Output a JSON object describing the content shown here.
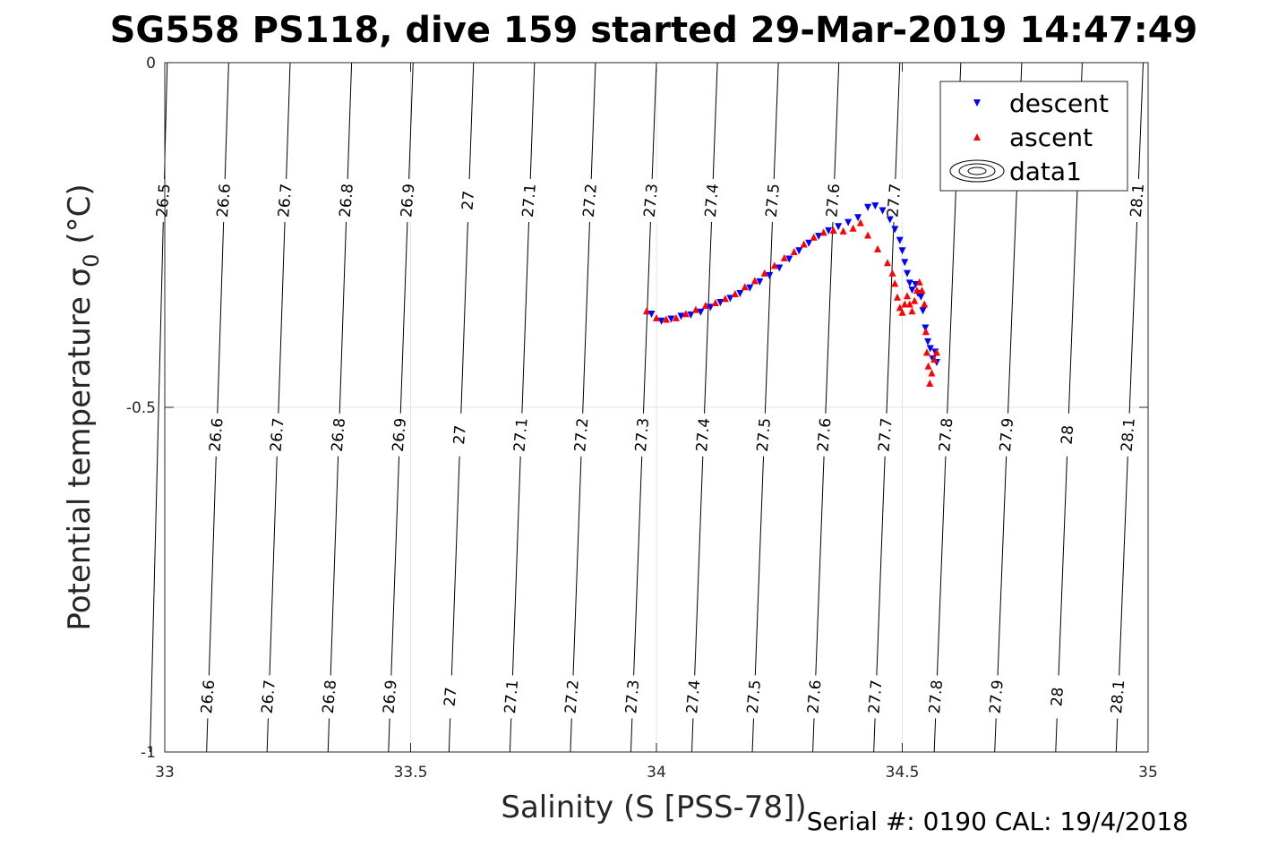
{
  "chart_data": {
    "type": "scatter",
    "title": "SG558 PS118, dive 159 started 29-Mar-2019 14:47:49",
    "xlabel": "Salinity (S [PSS-78])",
    "ylabel": "Potential temperature σ",
    "ylabel_sub": "0",
    "ylabel_unit": " (°C)",
    "xlim": [
      33,
      35
    ],
    "ylim": [
      -1,
      0
    ],
    "xticks": [
      33,
      33.5,
      34,
      34.5,
      35
    ],
    "xtick_labels": [
      "33",
      "33.5",
      "34",
      "34.5",
      "35"
    ],
    "yticks": [
      0,
      -0.5,
      -1
    ],
    "ytick_labels": [
      "0",
      "-0.5",
      "-1"
    ],
    "grid": true,
    "legend_position": "top-right",
    "legend": [
      {
        "label": "descent",
        "marker": "triangle-down",
        "color": "#0000ff"
      },
      {
        "label": "ascent",
        "marker": "triangle-up",
        "color": "#ff0000"
      },
      {
        "label": "data1",
        "marker": "contour",
        "color": "#000000"
      }
    ],
    "contours": [
      {
        "level": "26.5",
        "s_top": 33.005,
        "s_bottom": 32.97
      },
      {
        "level": "26.6",
        "s_top": 33.13,
        "s_bottom": 33.085
      },
      {
        "level": "26.7",
        "s_top": 33.255,
        "s_bottom": 33.208
      },
      {
        "level": "26.8",
        "s_top": 33.38,
        "s_bottom": 33.332
      },
      {
        "level": "26.9",
        "s_top": 33.505,
        "s_bottom": 33.455
      },
      {
        "level": "27",
        "s_top": 33.628,
        "s_bottom": 33.578
      },
      {
        "level": "27.1",
        "s_top": 33.752,
        "s_bottom": 33.702
      },
      {
        "level": "27.2",
        "s_top": 33.876,
        "s_bottom": 33.825
      },
      {
        "level": "27.3",
        "s_top": 34.0,
        "s_bottom": 33.948
      },
      {
        "level": "27.4",
        "s_top": 34.124,
        "s_bottom": 34.072
      },
      {
        "level": "27.5",
        "s_top": 34.248,
        "s_bottom": 34.195
      },
      {
        "level": "27.6",
        "s_top": 34.371,
        "s_bottom": 34.318
      },
      {
        "level": "27.7",
        "s_top": 34.495,
        "s_bottom": 34.442
      },
      {
        "level": "27.8",
        "s_top": 34.619,
        "s_bottom": 34.565
      },
      {
        "level": "27.9",
        "s_top": 34.743,
        "s_bottom": 34.688
      },
      {
        "level": "28",
        "s_top": 34.866,
        "s_bottom": 34.812
      },
      {
        "level": "28.1",
        "s_top": 34.99,
        "s_bottom": 34.935
      }
    ],
    "contour_label_rows": [
      {
        "t": -0.2,
        "levels": [
          "26.5",
          "26.6",
          "26.7",
          "26.8",
          "26.9",
          "27",
          "27.1",
          "27.2",
          "27.3",
          "27.4",
          "27.5",
          "27.6",
          "27.7",
          "28.1"
        ]
      },
      {
        "t": -0.54,
        "levels": [
          "26.6",
          "26.7",
          "26.8",
          "26.9",
          "27",
          "27.1",
          "27.2",
          "27.3",
          "27.4",
          "27.5",
          "27.6",
          "27.7",
          "27.8",
          "27.9",
          "28",
          "28.1"
        ]
      },
      {
        "t": -0.92,
        "levels": [
          "26.6",
          "26.7",
          "26.8",
          "26.9",
          "27",
          "27.1",
          "27.2",
          "27.3",
          "27.4",
          "27.5",
          "27.6",
          "27.7",
          "27.8",
          "27.9",
          "28",
          "28.1"
        ]
      }
    ],
    "series": [
      {
        "name": "descent",
        "marker": "triangle-down",
        "color": "#0000ff",
        "points": [
          [
            33.99,
            -0.365
          ],
          [
            34.01,
            -0.375
          ],
          [
            34.03,
            -0.372
          ],
          [
            34.05,
            -0.368
          ],
          [
            34.07,
            -0.366
          ],
          [
            34.09,
            -0.362
          ],
          [
            34.11,
            -0.355
          ],
          [
            34.13,
            -0.348
          ],
          [
            34.15,
            -0.342
          ],
          [
            34.17,
            -0.335
          ],
          [
            34.19,
            -0.327
          ],
          [
            34.21,
            -0.318
          ],
          [
            34.23,
            -0.309
          ],
          [
            34.25,
            -0.298
          ],
          [
            34.27,
            -0.285
          ],
          [
            34.29,
            -0.273
          ],
          [
            34.31,
            -0.262
          ],
          [
            34.33,
            -0.252
          ],
          [
            34.35,
            -0.244
          ],
          [
            34.37,
            -0.238
          ],
          [
            34.39,
            -0.232
          ],
          [
            34.41,
            -0.225
          ],
          [
            34.43,
            -0.21
          ],
          [
            34.445,
            -0.208
          ],
          [
            34.46,
            -0.215
          ],
          [
            34.475,
            -0.228
          ],
          [
            34.485,
            -0.242
          ],
          [
            34.495,
            -0.258
          ],
          [
            34.5,
            -0.273
          ],
          [
            34.505,
            -0.29
          ],
          [
            34.51,
            -0.306
          ],
          [
            34.515,
            -0.32
          ],
          [
            34.52,
            -0.33
          ],
          [
            34.527,
            -0.322
          ],
          [
            34.532,
            -0.335
          ],
          [
            34.538,
            -0.34
          ],
          [
            34.542,
            -0.36
          ],
          [
            34.547,
            -0.385
          ],
          [
            34.552,
            -0.405
          ],
          [
            34.557,
            -0.415
          ],
          [
            34.562,
            -0.43
          ],
          [
            34.567,
            -0.42
          ],
          [
            34.57,
            -0.435
          ]
        ]
      },
      {
        "name": "ascent",
        "marker": "triangle-up",
        "color": "#ff0000",
        "points": [
          [
            33.98,
            -0.36
          ],
          [
            34.0,
            -0.37
          ],
          [
            34.02,
            -0.372
          ],
          [
            34.04,
            -0.37
          ],
          [
            34.06,
            -0.364
          ],
          [
            34.08,
            -0.358
          ],
          [
            34.1,
            -0.352
          ],
          [
            34.12,
            -0.348
          ],
          [
            34.14,
            -0.342
          ],
          [
            34.16,
            -0.335
          ],
          [
            34.18,
            -0.325
          ],
          [
            34.2,
            -0.316
          ],
          [
            34.22,
            -0.305
          ],
          [
            34.24,
            -0.294
          ],
          [
            34.26,
            -0.283
          ],
          [
            34.28,
            -0.274
          ],
          [
            34.3,
            -0.263
          ],
          [
            34.32,
            -0.253
          ],
          [
            34.34,
            -0.246
          ],
          [
            34.36,
            -0.243
          ],
          [
            34.38,
            -0.244
          ],
          [
            34.4,
            -0.24
          ],
          [
            34.415,
            -0.232
          ],
          [
            34.43,
            -0.25
          ],
          [
            34.45,
            -0.27
          ],
          [
            34.47,
            -0.29
          ],
          [
            34.48,
            -0.305
          ],
          [
            34.485,
            -0.32
          ],
          [
            34.49,
            -0.34
          ],
          [
            34.495,
            -0.355
          ],
          [
            34.5,
            -0.362
          ],
          [
            34.505,
            -0.35
          ],
          [
            34.51,
            -0.338
          ],
          [
            34.515,
            -0.35
          ],
          [
            34.52,
            -0.36
          ],
          [
            34.525,
            -0.345
          ],
          [
            34.53,
            -0.33
          ],
          [
            34.535,
            -0.318
          ],
          [
            34.54,
            -0.33
          ],
          [
            34.545,
            -0.35
          ],
          [
            34.548,
            -0.39
          ],
          [
            34.55,
            -0.42
          ],
          [
            34.553,
            -0.44
          ],
          [
            34.556,
            -0.465
          ],
          [
            34.56,
            -0.45
          ],
          [
            34.565,
            -0.43
          ],
          [
            34.57,
            -0.42
          ]
        ]
      }
    ]
  },
  "footer": {
    "serial": "Serial #: 0190  CAL: 19/4/2018"
  }
}
